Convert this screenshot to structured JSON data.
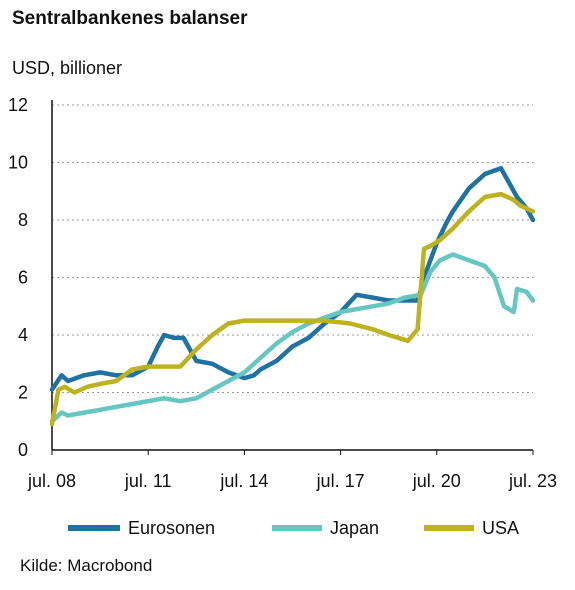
{
  "title": "Sentralbankenes balanser",
  "subtitle": "USD, billioner",
  "source": "Kilde: Macrobond",
  "chart_data": {
    "type": "line",
    "ylabel": "USD, billioner",
    "ylim": [
      0,
      12
    ],
    "yticks": [
      0,
      2,
      4,
      6,
      8,
      10,
      12
    ],
    "xlim": [
      2008.5,
      2023.5
    ],
    "xticks": [
      {
        "x": 2008.5,
        "label": "jul. 08"
      },
      {
        "x": 2011.5,
        "label": "jul. 11"
      },
      {
        "x": 2014.5,
        "label": "jul. 14"
      },
      {
        "x": 2017.5,
        "label": "jul. 17"
      },
      {
        "x": 2020.5,
        "label": "jul. 20"
      },
      {
        "x": 2023.5,
        "label": "jul. 23"
      }
    ],
    "grid": "horizontal dashed",
    "legend_position": "bottom",
    "series": [
      {
        "name": "Eurosonen",
        "color": "#1f73a3",
        "x": [
          2008.5,
          2008.8,
          2009.0,
          2009.5,
          2010.0,
          2010.5,
          2011.0,
          2011.5,
          2011.8,
          2012.0,
          2012.3,
          2012.6,
          2013.0,
          2013.5,
          2014.0,
          2014.5,
          2014.8,
          2015.0,
          2015.5,
          2016.0,
          2016.5,
          2017.0,
          2017.5,
          2018.0,
          2018.5,
          2019.0,
          2019.5,
          2019.9,
          2020.2,
          2020.5,
          2020.8,
          2021.0,
          2021.5,
          2021.8,
          2022.0,
          2022.5,
          2022.8,
          2023.0,
          2023.3,
          2023.5
        ],
        "values": [
          2.1,
          2.6,
          2.4,
          2.6,
          2.7,
          2.6,
          2.6,
          2.9,
          3.6,
          4.0,
          3.9,
          3.9,
          3.1,
          3.0,
          2.7,
          2.5,
          2.6,
          2.8,
          3.1,
          3.6,
          3.9,
          4.4,
          4.8,
          5.4,
          5.3,
          5.2,
          5.2,
          5.2,
          6.3,
          7.2,
          7.9,
          8.3,
          9.1,
          9.4,
          9.6,
          9.8,
          9.2,
          8.8,
          8.4,
          8.0
        ]
      },
      {
        "name": "Japan",
        "color": "#66c7c2",
        "x": [
          2008.5,
          2008.8,
          2009.0,
          2009.5,
          2010.0,
          2010.5,
          2011.0,
          2011.5,
          2012.0,
          2012.5,
          2013.0,
          2013.5,
          2014.0,
          2014.5,
          2015.0,
          2015.5,
          2016.0,
          2016.5,
          2017.0,
          2017.5,
          2018.0,
          2018.5,
          2019.0,
          2019.5,
          2020.0,
          2020.3,
          2020.6,
          2021.0,
          2021.5,
          2022.0,
          2022.3,
          2022.6,
          2022.9,
          2023.0,
          2023.3,
          2023.5
        ],
        "values": [
          1.0,
          1.3,
          1.2,
          1.3,
          1.4,
          1.5,
          1.6,
          1.7,
          1.8,
          1.7,
          1.8,
          2.1,
          2.4,
          2.7,
          3.2,
          3.7,
          4.1,
          4.4,
          4.6,
          4.8,
          4.9,
          5.0,
          5.1,
          5.3,
          5.4,
          6.2,
          6.6,
          6.8,
          6.6,
          6.4,
          6.0,
          5.0,
          4.8,
          5.6,
          5.5,
          5.2
        ]
      },
      {
        "name": "USA",
        "color": "#bfb21f",
        "x": [
          2008.5,
          2008.7,
          2008.9,
          2009.2,
          2009.6,
          2010.0,
          2010.5,
          2011.0,
          2011.5,
          2012.0,
          2012.5,
          2013.0,
          2013.5,
          2014.0,
          2014.5,
          2015.0,
          2016.0,
          2017.0,
          2017.8,
          2018.5,
          2019.0,
          2019.6,
          2019.9,
          2020.1,
          2020.3,
          2020.6,
          2021.0,
          2021.5,
          2022.0,
          2022.5,
          2022.9,
          2023.1,
          2023.3,
          2023.5
        ],
        "values": [
          0.9,
          2.1,
          2.2,
          2.0,
          2.2,
          2.3,
          2.4,
          2.8,
          2.9,
          2.9,
          2.9,
          3.5,
          4.0,
          4.4,
          4.5,
          4.5,
          4.5,
          4.5,
          4.4,
          4.2,
          4.0,
          3.8,
          4.2,
          7.0,
          7.1,
          7.3,
          7.7,
          8.3,
          8.8,
          8.9,
          8.7,
          8.5,
          8.4,
          8.3
        ]
      }
    ]
  }
}
